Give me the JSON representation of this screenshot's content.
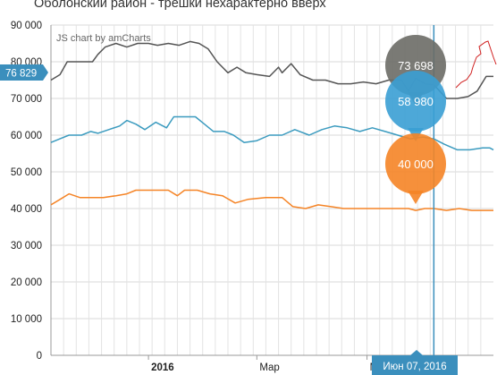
{
  "title": "Оболонский район - трешки нехарактерно вверх",
  "credit": "JS chart by amCharts",
  "cursor": {
    "value_label": "76 829",
    "date_label": "Июн 07, 2016"
  },
  "chart_data": {
    "type": "line",
    "title": "Оболонский район - трешки нехарактерно вверх",
    "ylim": [
      0,
      90000
    ],
    "y_ticks": [
      "0",
      "10 000",
      "20 000",
      "30 000",
      "40 000",
      "50 000",
      "60 000",
      "70 000",
      "80 000",
      "90 000"
    ],
    "x_ticks": [
      {
        "label": "2016",
        "bold": true,
        "date": "2016-01-01"
      },
      {
        "label": "Мар",
        "bold": false,
        "date": "2016-03-01"
      },
      {
        "label": "Май",
        "bold": false,
        "date": "2016-05-01"
      }
    ],
    "x_range": [
      "2015-11-08",
      "2016-07-10"
    ],
    "grid": true,
    "series": [
      {
        "color": "#555555",
        "cursor_value": 73698,
        "points": [
          [
            "2015-11-08",
            75000
          ],
          [
            "2015-11-13",
            76500
          ],
          [
            "2015-11-17",
            80000
          ],
          [
            "2015-11-22",
            80000
          ],
          [
            "2015-11-27",
            80000
          ],
          [
            "2015-12-01",
            80000
          ],
          [
            "2015-12-04",
            82000
          ],
          [
            "2015-12-08",
            84000
          ],
          [
            "2015-12-14",
            85000
          ],
          [
            "2015-12-20",
            84000
          ],
          [
            "2015-12-26",
            85000
          ],
          [
            "2016-01-01",
            85000
          ],
          [
            "2016-01-06",
            84500
          ],
          [
            "2016-01-12",
            85000
          ],
          [
            "2016-01-18",
            84500
          ],
          [
            "2016-01-24",
            85500
          ],
          [
            "2016-01-29",
            85000
          ],
          [
            "2016-02-03",
            83500
          ],
          [
            "2016-02-08",
            80000
          ],
          [
            "2016-02-14",
            77000
          ],
          [
            "2016-02-19",
            78500
          ],
          [
            "2016-02-24",
            77000
          ],
          [
            "2016-03-01",
            76500
          ],
          [
            "2016-03-08",
            76000
          ],
          [
            "2016-03-13",
            78500
          ],
          [
            "2016-03-15",
            77000
          ],
          [
            "2016-03-20",
            79500
          ],
          [
            "2016-03-25",
            76500
          ],
          [
            "2016-04-01",
            75000
          ],
          [
            "2016-04-08",
            75000
          ],
          [
            "2016-04-15",
            74000
          ],
          [
            "2016-04-22",
            74000
          ],
          [
            "2016-04-29",
            74500
          ],
          [
            "2016-05-06",
            74000
          ],
          [
            "2016-05-13",
            75000
          ],
          [
            "2016-05-20",
            75000
          ],
          [
            "2016-05-24",
            72000
          ],
          [
            "2016-05-28",
            75500
          ],
          [
            "2016-06-02",
            74000
          ],
          [
            "2016-06-07",
            73698
          ],
          [
            "2016-06-14",
            70000
          ],
          [
            "2016-06-20",
            70000
          ],
          [
            "2016-06-26",
            70500
          ],
          [
            "2016-07-01",
            72000
          ],
          [
            "2016-07-06",
            76000
          ],
          [
            "2016-07-10",
            76000
          ]
        ]
      },
      {
        "color": "#3b9bbf",
        "cursor_value": 58980,
        "points": [
          [
            "2015-11-08",
            58000
          ],
          [
            "2015-11-13",
            59000
          ],
          [
            "2015-11-18",
            60000
          ],
          [
            "2015-11-25",
            60000
          ],
          [
            "2015-11-30",
            61000
          ],
          [
            "2015-12-04",
            60500
          ],
          [
            "2015-12-10",
            61500
          ],
          [
            "2015-12-16",
            62500
          ],
          [
            "2015-12-20",
            64000
          ],
          [
            "2015-12-25",
            63000
          ],
          [
            "2015-12-30",
            61500
          ],
          [
            "2016-01-05",
            63500
          ],
          [
            "2016-01-11",
            62000
          ],
          [
            "2016-01-15",
            65000
          ],
          [
            "2016-01-22",
            65000
          ],
          [
            "2016-01-27",
            65000
          ],
          [
            "2016-02-01",
            63000
          ],
          [
            "2016-02-06",
            61000
          ],
          [
            "2016-02-12",
            61000
          ],
          [
            "2016-02-17",
            60000
          ],
          [
            "2016-02-23",
            58000
          ],
          [
            "2016-03-01",
            58500
          ],
          [
            "2016-03-08",
            60000
          ],
          [
            "2016-03-15",
            60000
          ],
          [
            "2016-03-22",
            61500
          ],
          [
            "2016-03-30",
            60000
          ],
          [
            "2016-04-06",
            61500
          ],
          [
            "2016-04-13",
            62500
          ],
          [
            "2016-04-20",
            62000
          ],
          [
            "2016-04-27",
            61000
          ],
          [
            "2016-05-04",
            62000
          ],
          [
            "2016-05-11",
            61000
          ],
          [
            "2016-05-18",
            60000
          ],
          [
            "2016-05-25",
            59000
          ],
          [
            "2016-06-01",
            59500
          ],
          [
            "2016-06-07",
            58980
          ],
          [
            "2016-06-13",
            57500
          ],
          [
            "2016-06-20",
            56000
          ],
          [
            "2016-06-27",
            56000
          ],
          [
            "2016-07-04",
            56500
          ],
          [
            "2016-07-08",
            56500
          ],
          [
            "2016-07-10",
            56000
          ]
        ]
      },
      {
        "color": "#f58426",
        "cursor_value": 40000,
        "points": [
          [
            "2015-11-08",
            41000
          ],
          [
            "2015-11-13",
            42500
          ],
          [
            "2015-11-18",
            44000
          ],
          [
            "2015-11-24",
            43000
          ],
          [
            "2015-11-30",
            43000
          ],
          [
            "2015-12-07",
            43000
          ],
          [
            "2015-12-14",
            43500
          ],
          [
            "2015-12-20",
            44000
          ],
          [
            "2015-12-25",
            45000
          ],
          [
            "2016-01-04",
            45000
          ],
          [
            "2016-01-12",
            45000
          ],
          [
            "2016-01-17",
            43500
          ],
          [
            "2016-01-21",
            45000
          ],
          [
            "2016-01-28",
            45000
          ],
          [
            "2016-02-04",
            44000
          ],
          [
            "2016-02-11",
            43500
          ],
          [
            "2016-02-18",
            41500
          ],
          [
            "2016-02-25",
            42500
          ],
          [
            "2016-03-06",
            43000
          ],
          [
            "2016-03-15",
            43000
          ],
          [
            "2016-03-21",
            40500
          ],
          [
            "2016-03-28",
            40000
          ],
          [
            "2016-04-04",
            41000
          ],
          [
            "2016-04-11",
            40500
          ],
          [
            "2016-04-18",
            40000
          ],
          [
            "2016-04-26",
            40000
          ],
          [
            "2016-05-03",
            40000
          ],
          [
            "2016-05-10",
            40000
          ],
          [
            "2016-05-17",
            40000
          ],
          [
            "2016-05-24",
            40000
          ],
          [
            "2016-05-28",
            39500
          ],
          [
            "2016-06-02",
            40000
          ],
          [
            "2016-06-07",
            40000
          ],
          [
            "2016-06-14",
            39500
          ],
          [
            "2016-06-21",
            40000
          ],
          [
            "2016-06-28",
            39500
          ],
          [
            "2016-07-05",
            39500
          ],
          [
            "2016-07-10",
            39500
          ]
        ]
      }
    ]
  }
}
